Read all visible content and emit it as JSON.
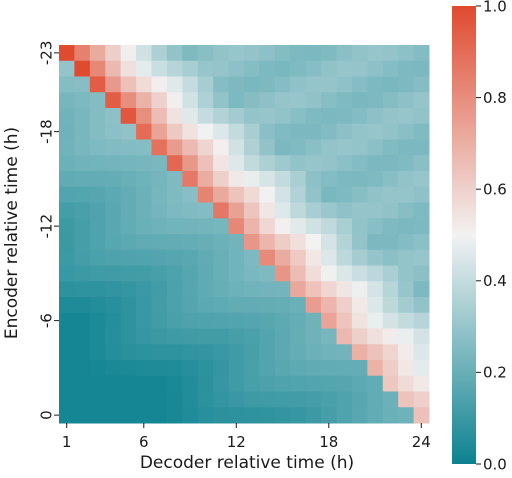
{
  "chart_data": {
    "type": "heatmap",
    "xlabel": "Decoder relative time (h)",
    "ylabel": "Encoder relative time (h)",
    "x_ticks": [
      "1",
      "6",
      "12",
      "18",
      "24"
    ],
    "y_ticks": [
      "-23",
      "-18",
      "-12",
      "-6",
      "0"
    ],
    "rows": 24,
    "cols": 24,
    "value_range": [
      0.0,
      1.0
    ],
    "colorbar_ticks": [
      "0.0",
      "0.2",
      "0.4",
      "0.6",
      "0.8",
      "1.0"
    ],
    "colormap": {
      "low": "#0c8290",
      "mid": "#f2f2f2",
      "high": "#e04a2f"
    },
    "matrix_description": "row i (encoder -23..0), col j (decoder 1..24); attention near diagonal j-i is high for top rows, decaying toward bottom",
    "values_lower_left": 0.17,
    "values_upper_right": 0.33
  }
}
